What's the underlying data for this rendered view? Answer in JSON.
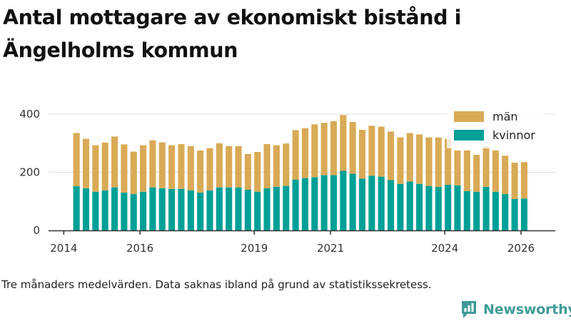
{
  "title": "Antal mottagare av ekonomiskt bistånd i Ängelholms kommun",
  "caption": "Tre månaders medelvärden. Data saknas ibland på grund av statistikssekretess.",
  "brand": {
    "name": "Newsworthy",
    "color": "#3f9b97"
  },
  "chart_data": {
    "type": "bar",
    "stacked": true,
    "x_start": {
      "year": 2014,
      "month": 5
    },
    "xlim": [
      2013.6,
      2026.9
    ],
    "ylim": [
      0,
      420
    ],
    "y_ticks": [
      0,
      200,
      400
    ],
    "y_tick_labels": [
      "0",
      "200",
      "400"
    ],
    "x_ticks": [
      2014,
      2016,
      2019,
      2021,
      2024,
      2026
    ],
    "x_tick_labels": [
      "2014",
      "2016",
      "2019",
      "2021",
      "2024",
      "2026"
    ],
    "legend_position": "top-right",
    "series": [
      {
        "name": "kvinnor",
        "color": "#00a096",
        "values": [
          152,
          145,
          133,
          138,
          148,
          130,
          125,
          133,
          148,
          145,
          143,
          143,
          138,
          130,
          138,
          148,
          148,
          148,
          140,
          133,
          145,
          150,
          153,
          175,
          180,
          183,
          190,
          190,
          205,
          195,
          178,
          188,
          185,
          173,
          160,
          168,
          160,
          153,
          150,
          157,
          155,
          135,
          133,
          150,
          133,
          125,
          108,
          110
        ]
      },
      {
        "name": "män",
        "color": "#d9aa56",
        "values": [
          183,
          170,
          160,
          164,
          175,
          166,
          146,
          160,
          162,
          158,
          150,
          154,
          152,
          145,
          145,
          152,
          142,
          142,
          123,
          137,
          152,
          143,
          146,
          170,
          172,
          182,
          180,
          186,
          192,
          178,
          168,
          172,
          172,
          167,
          160,
          167,
          170,
          167,
          170,
          158,
          120,
          140,
          127,
          140,
          142,
          132,
          125,
          125
        ]
      }
    ],
    "grid": true
  }
}
